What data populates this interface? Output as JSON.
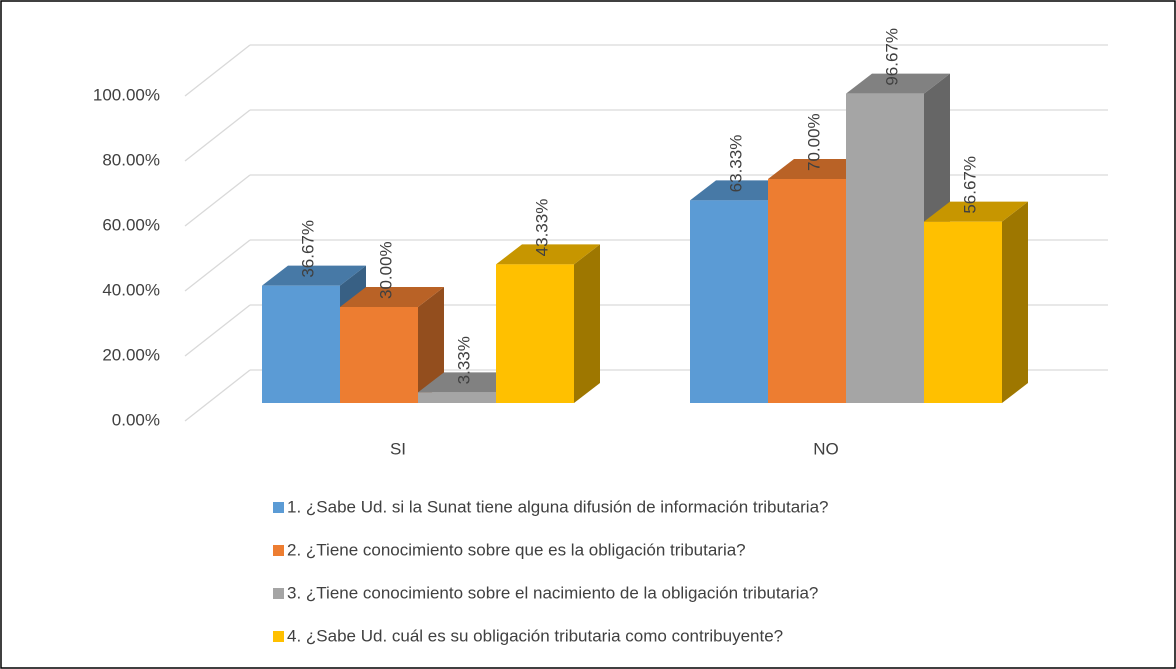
{
  "chart_data": {
    "type": "bar3d",
    "categories": [
      "SI",
      "NO"
    ],
    "series": [
      {
        "name": "1. ¿Sabe Ud. si la Sunat tiene alguna difusión de información tributaria?",
        "color": "#5b9bd5",
        "values": [
          36.67,
          63.33
        ],
        "value_labels": [
          "36.67%",
          "63.33%"
        ]
      },
      {
        "name": "2. ¿Tiene conocimiento sobre que es la obligación tributaria?",
        "color": "#ed7d31",
        "values": [
          30.0,
          70.0
        ],
        "value_labels": [
          "30.00%",
          "70.00%"
        ]
      },
      {
        "name": "3. ¿Tiene conocimiento sobre el nacimiento de la obligación tributaria?",
        "color": "#a5a5a5",
        "values": [
          3.33,
          96.67
        ],
        "value_labels": [
          "3.33%",
          "96.67%"
        ]
      },
      {
        "name": "4. ¿Sabe Ud. cuál es su obligación tributaria como contribuyente?",
        "color": "#ffc000",
        "values": [
          43.33,
          56.67
        ],
        "value_labels": [
          "43.33%",
          "56.67%"
        ]
      }
    ],
    "ylim": [
      0,
      100
    ],
    "yticks": [
      {
        "value": 0,
        "label": "0.00%"
      },
      {
        "value": 20,
        "label": "20.00%"
      },
      {
        "value": 40,
        "label": "40.00%"
      },
      {
        "value": 60,
        "label": "60.00%"
      },
      {
        "value": 80,
        "label": "80.00%"
      },
      {
        "value": 100,
        "label": "100.00%"
      }
    ],
    "grid": true,
    "legend": "bottom"
  }
}
